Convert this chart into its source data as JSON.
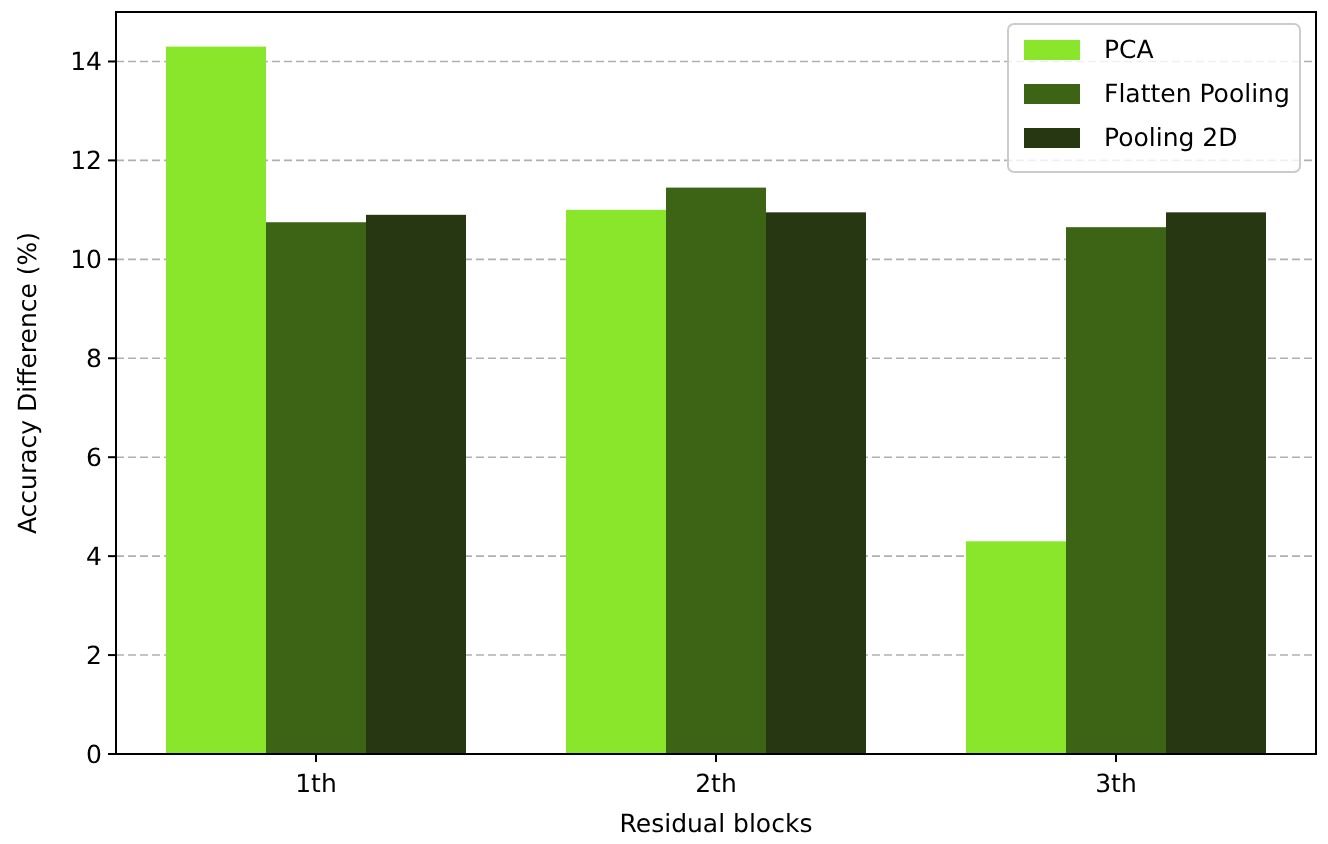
{
  "chart_data": {
    "type": "bar",
    "xlabel": "Residual blocks",
    "ylabel": "Accuracy Difference (%)",
    "categories": [
      "1th",
      "2th",
      "3th"
    ],
    "series": [
      {
        "name": "PCA",
        "color": "#8ae62a",
        "values": [
          14.3,
          11.0,
          4.3
        ]
      },
      {
        "name": "Flatten Pooling",
        "color": "#3d6414",
        "values": [
          10.75,
          11.45,
          10.65
        ]
      },
      {
        "name": "Pooling 2D",
        "color": "#263712",
        "values": [
          10.9,
          10.95,
          10.95
        ]
      }
    ],
    "ylim": [
      0,
      15
    ],
    "yticks": [
      0,
      2,
      4,
      6,
      8,
      10,
      12,
      14
    ],
    "grid": "y",
    "legend": "top right"
  }
}
